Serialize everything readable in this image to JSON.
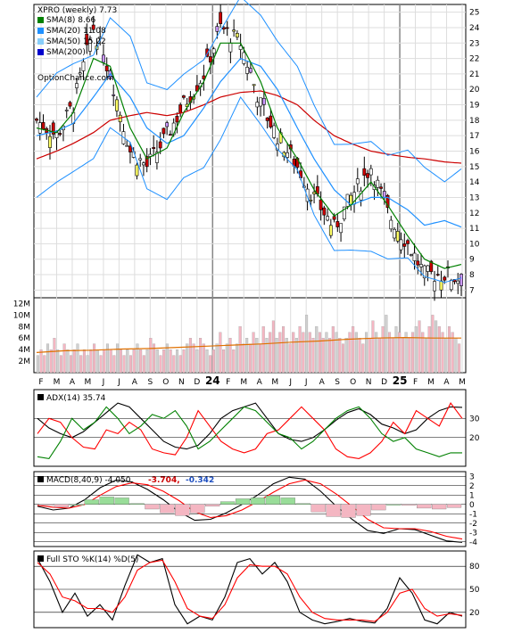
{
  "chart_data": [
    {
      "type": "candlestick",
      "title": "XPRO (weekly) 7.73",
      "source": "OptionChance.com",
      "x_ticks": [
        "F",
        "M",
        "A",
        "M",
        "J",
        "J",
        "A",
        "S",
        "O",
        "N",
        "D",
        "24",
        "F",
        "M",
        "A",
        "M",
        "J",
        "J",
        "A",
        "S",
        "O",
        "N",
        "D",
        "25",
        "F",
        "M",
        "A",
        "M"
      ],
      "ylim": [
        6.5,
        25.5
      ],
      "y_ticks": [
        7,
        8,
        9,
        10,
        11,
        12,
        13,
        14,
        15,
        16,
        17,
        18,
        19,
        20,
        21,
        22,
        23,
        24,
        25
      ],
      "grid": true,
      "legend": [
        {
          "name": "SMA(8) 8.66",
          "color": "#008000"
        },
        {
          "name": "SMA(20) 11.08",
          "color": "#1e90ff"
        },
        {
          "name": "SMA(50) 15.22",
          "color": "#87cefa"
        },
        {
          "name": "SMA(200)",
          "color": "#0000cd"
        }
      ],
      "series": [
        {
          "name": "Close",
          "x": [
            0,
            6,
            11,
            17,
            22,
            28,
            33,
            39,
            44,
            50,
            55,
            61,
            67,
            72,
            78,
            83,
            89,
            94,
            100,
            105,
            111,
            116,
            122,
            127
          ],
          "values": [
            18,
            17,
            19,
            24,
            21,
            16,
            15,
            17,
            19,
            21,
            24,
            23,
            19,
            17,
            15,
            13,
            11,
            13,
            15,
            12,
            10,
            8,
            8,
            7.7
          ]
        },
        {
          "name": "SMA(8)",
          "color": "#008000",
          "x": [
            0,
            6,
            11,
            17,
            22,
            28,
            33,
            39,
            44,
            50,
            55,
            61,
            67,
            72,
            78,
            83,
            89,
            94,
            100,
            105,
            111,
            116,
            122,
            127
          ],
          "values": [
            17.5,
            17.2,
            18.5,
            22,
            21.5,
            17.5,
            15.5,
            16.2,
            18.5,
            20.5,
            23,
            23,
            20.5,
            17.5,
            15.5,
            13.5,
            11.8,
            12.5,
            14,
            12.5,
            10.5,
            9,
            8.4,
            8.66
          ]
        },
        {
          "name": "SMA(20)",
          "color": "#1e90ff",
          "x": [
            0,
            6,
            11,
            17,
            22,
            28,
            33,
            39,
            44,
            50,
            55,
            61,
            67,
            72,
            78,
            83,
            89,
            94,
            100,
            105,
            111,
            116,
            122,
            127
          ],
          "values": [
            17,
            17.3,
            17.8,
            19.5,
            21,
            19.5,
            17.5,
            16.5,
            17,
            18.8,
            20.5,
            22,
            21.5,
            20,
            17.5,
            15.5,
            13.5,
            12.5,
            13,
            13,
            12.2,
            11.2,
            11.5,
            11.08
          ]
        },
        {
          "name": "SMA(50)",
          "color": "#87cefa",
          "x": [
            0,
            6,
            11,
            17,
            22,
            28,
            33,
            39,
            44,
            50,
            55,
            61,
            67,
            72,
            78,
            83,
            89,
            94,
            100,
            105,
            111,
            116,
            122,
            127
          ],
          "values": [
            15.5,
            16,
            16.5,
            17.2,
            18,
            18.3,
            18.5,
            18.3,
            18.5,
            19,
            19.5,
            19.8,
            19.9,
            19.6,
            19,
            18,
            17,
            16.5,
            16,
            15.8,
            15.6,
            15.5,
            15.3,
            15.22
          ]
        }
      ]
    },
    {
      "type": "bar",
      "title": "Volume",
      "ylim": [
        0,
        13
      ],
      "y_ticks": [
        "2M",
        "4M",
        "6M",
        "8M",
        "10M",
        "12M"
      ],
      "series": [
        {
          "name": "Volume",
          "values": [
            3,
            4,
            3,
            5,
            4,
            6,
            4,
            3,
            5,
            4,
            3,
            4,
            5,
            3,
            4,
            3,
            4,
            5,
            4,
            3,
            4,
            5,
            4,
            3,
            5,
            4,
            3,
            4,
            3,
            4,
            5,
            4,
            3,
            4,
            6,
            5,
            4,
            3,
            4,
            5,
            4,
            3,
            4,
            3,
            4,
            5,
            6,
            5,
            4,
            6,
            5,
            4,
            3,
            4,
            5,
            7,
            4,
            5,
            6,
            4,
            5,
            8,
            5,
            6,
            5,
            7,
            6,
            5,
            8,
            6,
            7,
            9,
            6,
            7,
            8,
            6,
            5,
            7,
            6,
            8,
            7,
            10,
            7,
            6,
            8,
            7,
            6,
            7,
            6,
            8,
            7,
            6,
            5,
            6,
            7,
            8,
            7,
            6,
            5,
            7,
            6,
            9,
            7,
            6,
            8,
            10,
            7,
            6,
            8,
            7,
            6,
            7,
            6,
            7,
            8,
            9,
            7,
            6,
            8,
            10,
            9,
            8,
            7,
            6,
            8,
            7,
            6,
            5
          ]
        },
        {
          "name": "Avg",
          "values": [
            3.5,
            3.8,
            3.9,
            4.1,
            4.2,
            4.4,
            4.6,
            4.8,
            5.0,
            5.3,
            5.5,
            5.8,
            6.0,
            6.1,
            6.0,
            6.0
          ]
        }
      ]
    },
    {
      "type": "line",
      "title": "ADX(14) 35.74",
      "ylim": [
        5,
        45
      ],
      "y_ticks": [
        20,
        30
      ],
      "series": [
        {
          "name": "ADX",
          "color": "#000000",
          "values": [
            30,
            25,
            22,
            20,
            23,
            28,
            33,
            38,
            36,
            30,
            24,
            18,
            15,
            14,
            16,
            22,
            30,
            34,
            36,
            38,
            30,
            22,
            19,
            18,
            20,
            24,
            29,
            33,
            35,
            32,
            27,
            25,
            22,
            24,
            30,
            34,
            36,
            35.74
          ]
        },
        {
          "name": "+DI",
          "color": "#ff0000",
          "values": [
            22,
            30,
            28,
            20,
            15,
            14,
            24,
            22,
            28,
            24,
            14,
            12,
            11,
            20,
            34,
            26,
            18,
            14,
            12,
            14,
            22,
            24,
            30,
            36,
            30,
            24,
            14,
            10,
            9,
            12,
            18,
            28,
            22,
            34,
            30,
            26,
            38,
            30
          ]
        },
        {
          "name": "-DI",
          "color": "#008000",
          "values": [
            10,
            9,
            18,
            30,
            24,
            28,
            36,
            30,
            22,
            26,
            32,
            30,
            34,
            26,
            14,
            18,
            24,
            30,
            36,
            34,
            28,
            22,
            20,
            14,
            18,
            24,
            30,
            34,
            36,
            30,
            22,
            18,
            20,
            14,
            12,
            10,
            12,
            12
          ]
        }
      ]
    },
    {
      "type": "line",
      "title": "MACD(8,40,9) -4.050, -3.704, -0.342",
      "labels": {
        "macd": "MACD(8,40,9) -4.050,",
        "signal": "-3.704,",
        "hist": "-0.342"
      },
      "ylim": [
        -4.5,
        3.5
      ],
      "y_ticks": [
        3,
        2,
        1,
        0,
        -1,
        -2,
        -3,
        -4
      ],
      "series": [
        {
          "name": "MACD",
          "color": "#000000",
          "values": [
            -0.2,
            -0.6,
            -0.4,
            0.5,
            1.8,
            2.6,
            2.4,
            1.6,
            0.5,
            -0.8,
            -1.7,
            -1.6,
            -0.9,
            0.0,
            1.0,
            2.2,
            2.9,
            2.7,
            1.4,
            -0.2,
            -1.6,
            -2.8,
            -3.1,
            -2.6,
            -2.7,
            -3.3,
            -3.9,
            -4.05
          ]
        },
        {
          "name": "Signal",
          "color": "#ff0000",
          "values": [
            -0.1,
            -0.3,
            -0.4,
            0.0,
            1.0,
            1.9,
            2.3,
            2.1,
            1.4,
            0.4,
            -0.8,
            -1.4,
            -1.2,
            -0.6,
            0.3,
            1.3,
            2.2,
            2.6,
            2.2,
            1.1,
            -0.2,
            -1.6,
            -2.5,
            -2.6,
            -2.6,
            -2.9,
            -3.4,
            -3.7
          ]
        },
        {
          "name": "Histogram",
          "values": [
            -0.1,
            -0.3,
            0.0,
            0.5,
            0.8,
            0.7,
            0.1,
            -0.5,
            -0.9,
            -1.2,
            -0.9,
            -0.2,
            0.3,
            0.6,
            0.7,
            0.9,
            0.7,
            0.1,
            -0.8,
            -1.3,
            -1.4,
            -1.2,
            -0.6,
            0.0,
            -0.1,
            -0.4,
            -0.5,
            -0.342
          ]
        }
      ]
    },
    {
      "type": "line",
      "title": "Full STO %K(14) %D(5)",
      "ylim": [
        0,
        100
      ],
      "y_ticks": [
        20,
        50,
        80
      ],
      "series": [
        {
          "name": "%K",
          "color": "#000000",
          "values": [
            90,
            60,
            20,
            45,
            15,
            30,
            10,
            55,
            95,
            85,
            90,
            30,
            5,
            15,
            10,
            40,
            85,
            90,
            70,
            85,
            60,
            20,
            10,
            5,
            8,
            12,
            8,
            6,
            25,
            65,
            45,
            10,
            5,
            20,
            15
          ]
        },
        {
          "name": "%D",
          "color": "#ff0000",
          "values": [
            85,
            70,
            40,
            35,
            25,
            25,
            20,
            40,
            75,
            85,
            88,
            60,
            25,
            15,
            12,
            30,
            65,
            82,
            80,
            80,
            70,
            40,
            20,
            12,
            10,
            10,
            10,
            8,
            20,
            45,
            50,
            25,
            15,
            18,
            16
          ]
        }
      ]
    }
  ]
}
